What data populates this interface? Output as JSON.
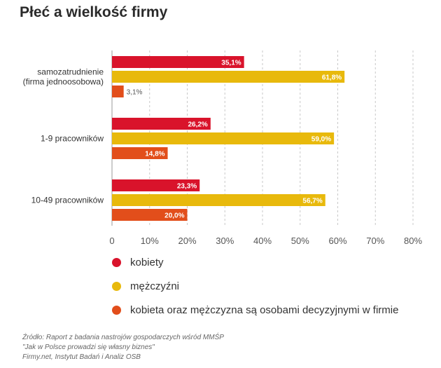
{
  "chart_data": {
    "type": "bar",
    "orientation": "horizontal",
    "title": "Płeć a wielkość firmy",
    "categories": [
      "samozatrudnienie\n(firma jednoosobowa)",
      "1-9 pracowników",
      "10-49 pracowników"
    ],
    "series": [
      {
        "name": "kobiety",
        "color": "#d9132b",
        "values": [
          35.1,
          26.2,
          23.3
        ],
        "labels": [
          "35,1%",
          "26,2%",
          "23,3%"
        ]
      },
      {
        "name": "mężczyźni",
        "color": "#e8b90c",
        "values": [
          61.8,
          59.0,
          56.7
        ],
        "labels": [
          "61,8%",
          "59,0%",
          "56,7%"
        ]
      },
      {
        "name": "kobieta oraz mężczyzna są osobami decyzyjnymi w firmie",
        "color": "#e24e1b",
        "values": [
          3.1,
          14.8,
          20.0
        ],
        "labels": [
          "3,1%",
          "14,8%",
          "20,0%"
        ]
      }
    ],
    "xlim": [
      0,
      80
    ],
    "xticks": [
      0,
      10,
      20,
      30,
      40,
      50,
      60,
      70,
      80
    ],
    "xtick_labels": [
      "0",
      "10%",
      "20%",
      "30%",
      "40%",
      "50%",
      "60%",
      "70%",
      "80%"
    ],
    "grid": "vertical dashed",
    "legend_position": "bottom"
  },
  "title": "Płeć a wielkość firmy",
  "legend": {
    "items": [
      {
        "label": "kobiety",
        "color": "#d9132b"
      },
      {
        "label": "mężczyźni",
        "color": "#e8b90c"
      },
      {
        "label": "kobieta oraz mężczyzna są osobami decyzyjnymi w firmie",
        "color": "#e24e1b"
      }
    ]
  },
  "source": {
    "line1": "Źródło: Raport z badania nastrojów gospodarczych wśród MMŚP",
    "line2": "\"Jak w Polsce prowadzi się własny biznes\"",
    "line3": "Firmy.net, Instytut Badań i Analiz OSB"
  }
}
